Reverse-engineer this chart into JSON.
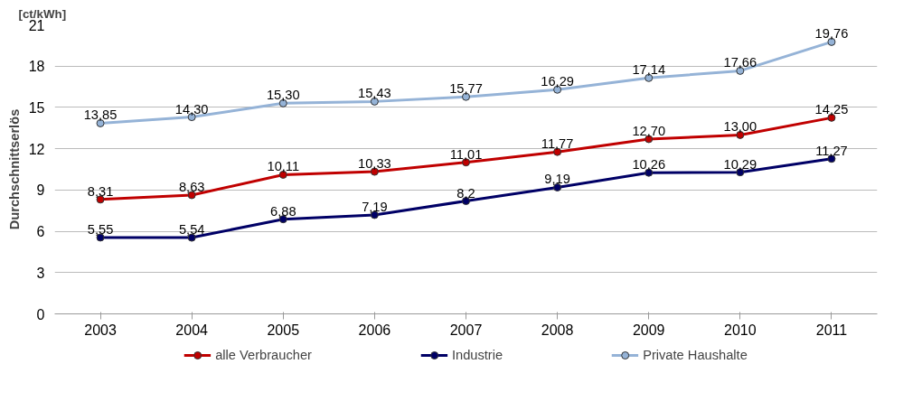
{
  "chart_data": {
    "type": "line",
    "ylabel": "Durchschnittserlös",
    "annotations": [
      "[ct/kWh]"
    ],
    "categories": [
      "2003",
      "2004",
      "2005",
      "2006",
      "2007",
      "2008",
      "2009",
      "2010",
      "2011"
    ],
    "series": [
      {
        "name": "alle Verbraucher",
        "color": "#c00000",
        "values": [
          8.31,
          8.63,
          10.11,
          10.33,
          11.01,
          11.77,
          12.7,
          13.0,
          14.25
        ],
        "value_labels": [
          "8,31",
          "8,63",
          "10,11",
          "10,33",
          "11,01",
          "11,77",
          "12,70",
          "13,00",
          "14,25"
        ]
      },
      {
        "name": "Industrie",
        "color": "#000066",
        "values": [
          5.55,
          5.54,
          6.88,
          7.19,
          8.2,
          9.19,
          10.26,
          10.29,
          11.27
        ],
        "value_labels": [
          "5,55",
          "5,54",
          "6,88",
          "7,19",
          "8,2",
          "9,19",
          "10,26",
          "10,29",
          "11,27"
        ]
      },
      {
        "name": "Private Haushalte",
        "color": "#95b3d7",
        "values": [
          13.85,
          14.3,
          15.3,
          15.43,
          15.77,
          16.29,
          17.14,
          17.66,
          19.76
        ],
        "value_labels": [
          "13,85",
          "14,30",
          "15,30",
          "15,43",
          "15,77",
          "16,29",
          "17,14",
          "17,66",
          "19,76"
        ]
      }
    ],
    "ylim": [
      0,
      21
    ],
    "yticks": [
      0,
      3,
      6,
      9,
      12,
      15,
      18,
      21
    ],
    "grid": "y",
    "legend": "bottom",
    "marker": "circle",
    "line_style": "solid"
  }
}
